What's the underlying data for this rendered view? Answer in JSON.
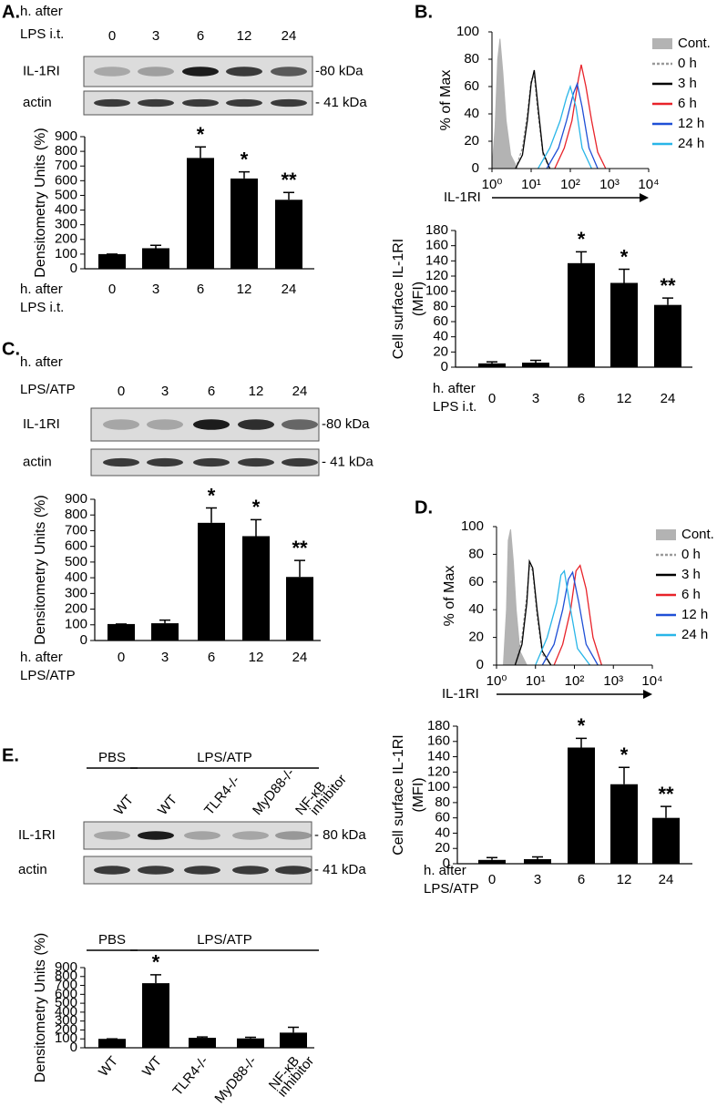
{
  "chart_data": [
    {
      "type": "bar",
      "panel": "A.",
      "xlabel": [
        "h. after",
        "LPS i.t."
      ],
      "ylabel": "Densitometry Units (%)",
      "categories": [
        "0",
        "3",
        "6",
        "12",
        "24"
      ],
      "values": [
        100,
        140,
        755,
        615,
        470
      ],
      "errors": [
        0,
        20,
        75,
        45,
        50
      ],
      "annotations": [
        null,
        null,
        "*",
        "*",
        "**"
      ],
      "color": "#000000",
      "ylim": [
        0,
        900
      ],
      "yticks": [
        0,
        100,
        200,
        300,
        400,
        500,
        600,
        700,
        800,
        900
      ],
      "blot": {
        "rows": [
          "IL-1RI",
          "actin"
        ],
        "markers": [
          "-80 kDa",
          "- 41 kDa"
        ]
      }
    },
    {
      "type": "line",
      "panel": "B.",
      "xlabel": "IL-1RI",
      "ylabel": "% of Max",
      "xscale": "log",
      "xlim": [
        1,
        10000
      ],
      "xticks": [
        {
          "value": 1,
          "label": "10⁰"
        },
        {
          "value": 10,
          "label": "10¹"
        },
        {
          "value": 100,
          "label": "10²"
        },
        {
          "value": 1000,
          "label": "10³"
        },
        {
          "value": 10000,
          "label": "10⁴"
        }
      ],
      "ylim": [
        0,
        100
      ],
      "yticks": [
        0,
        20,
        40,
        60,
        80,
        100
      ],
      "legend": "right",
      "series": [
        {
          "name": "Cont.",
          "color": "#b3b3b3",
          "style": "area",
          "x": [
            1,
            1.2,
            1.4,
            1.6,
            1.9,
            2.3,
            3,
            4.5
          ],
          "values": [
            0,
            30,
            80,
            95,
            70,
            35,
            10,
            0
          ]
        },
        {
          "name": "0 h",
          "color": "#999999",
          "style": "dashed",
          "x": [
            4,
            6,
            8,
            10,
            12,
            15,
            20,
            30
          ],
          "values": [
            0,
            15,
            40,
            65,
            68,
            40,
            10,
            0
          ]
        },
        {
          "name": "3 h",
          "color": "#000000",
          "style": "solid",
          "x": [
            4,
            6,
            8,
            10,
            12,
            15,
            20,
            30
          ],
          "values": [
            0,
            10,
            35,
            62,
            72,
            45,
            12,
            0
          ]
        },
        {
          "name": "6 h",
          "color": "#e8232a",
          "style": "solid",
          "x": [
            40,
            70,
            110,
            160,
            190,
            250,
            350,
            500,
            800
          ],
          "values": [
            0,
            15,
            35,
            65,
            76,
            60,
            35,
            12,
            0
          ]
        },
        {
          "name": "12 h",
          "color": "#1f4fd6",
          "style": "solid",
          "x": [
            25,
            50,
            80,
            120,
            150,
            200,
            300,
            500
          ],
          "values": [
            0,
            15,
            35,
            55,
            62,
            45,
            15,
            0
          ]
        },
        {
          "name": "24 h",
          "color": "#29b6e8",
          "style": "solid",
          "x": [
            15,
            30,
            55,
            80,
            100,
            140,
            200,
            350
          ],
          "values": [
            0,
            15,
            35,
            52,
            60,
            45,
            15,
            0
          ]
        }
      ]
    },
    {
      "type": "bar",
      "xlabel": [
        "h. after",
        "LPS i.t."
      ],
      "ylabel": [
        "Cell surface IL-1RI",
        "(MFI)"
      ],
      "categories": [
        "0",
        "3",
        "6",
        "12",
        "24"
      ],
      "values": [
        5,
        6,
        137,
        111,
        82
      ],
      "errors": [
        2,
        3,
        15,
        18,
        9
      ],
      "annotations": [
        null,
        null,
        "*",
        "*",
        "**"
      ],
      "color": "#000000",
      "ylim": [
        0,
        180
      ],
      "yticks": [
        0,
        20,
        40,
        60,
        80,
        100,
        120,
        140,
        160,
        180
      ]
    },
    {
      "type": "bar",
      "panel": "C.",
      "xlabel": [
        "h. after",
        "LPS/ATP"
      ],
      "ylabel": "Densitometry Units (%)",
      "categories": [
        "0",
        "3",
        "6",
        "12",
        "24"
      ],
      "values": [
        105,
        110,
        750,
        665,
        405
      ],
      "errors": [
        0,
        20,
        95,
        105,
        105
      ],
      "annotations": [
        null,
        null,
        "*",
        "*",
        "**"
      ],
      "color": "#000000",
      "ylim": [
        0,
        900
      ],
      "yticks": [
        0,
        100,
        200,
        300,
        400,
        500,
        600,
        700,
        800,
        900
      ],
      "blot": {
        "rows": [
          "IL-1RI",
          "actin"
        ],
        "markers": [
          "-80 kDa",
          "- 41 kDa"
        ]
      }
    },
    {
      "type": "line",
      "panel": "D.",
      "xlabel": "IL-1RI",
      "ylabel": "% of Max",
      "xscale": "log",
      "xlim": [
        1,
        10000
      ],
      "xticks": [
        {
          "value": 1,
          "label": "10⁰"
        },
        {
          "value": 10,
          "label": "10¹"
        },
        {
          "value": 100,
          "label": "10²"
        },
        {
          "value": 1000,
          "label": "10³"
        },
        {
          "value": 10000,
          "label": "10⁴"
        }
      ],
      "ylim": [
        0,
        100
      ],
      "yticks": [
        0,
        20,
        40,
        60,
        80,
        100
      ],
      "legend": "right",
      "series": [
        {
          "name": "Cont.",
          "color": "#b3b3b3",
          "style": "area",
          "x": [
            1.5,
            1.8,
            2,
            2.3,
            2.7,
            3.2,
            4,
            6
          ],
          "values": [
            0,
            40,
            90,
            98,
            75,
            40,
            10,
            0
          ]
        },
        {
          "name": "0 h",
          "color": "#999999",
          "style": "dashed",
          "x": [
            3,
            4.5,
            6,
            7,
            8.5,
            11,
            15,
            25
          ],
          "values": [
            0,
            20,
            50,
            72,
            68,
            35,
            8,
            0
          ]
        },
        {
          "name": "3 h",
          "color": "#000000",
          "style": "solid",
          "x": [
            3,
            4.5,
            6,
            7,
            8.5,
            11,
            15,
            25
          ],
          "values": [
            0,
            15,
            45,
            75,
            70,
            40,
            10,
            0
          ]
        },
        {
          "name": "6 h",
          "color": "#e8232a",
          "style": "solid",
          "x": [
            30,
            50,
            80,
            110,
            140,
            200,
            300,
            500
          ],
          "values": [
            0,
            15,
            40,
            68,
            72,
            55,
            20,
            0
          ]
        },
        {
          "name": "12 h",
          "color": "#1f4fd6",
          "style": "solid",
          "x": [
            15,
            30,
            50,
            70,
            90,
            130,
            200,
            400
          ],
          "values": [
            0,
            15,
            40,
            62,
            67,
            45,
            15,
            0
          ]
        },
        {
          "name": "24 h",
          "color": "#29b6e8",
          "style": "solid",
          "x": [
            10,
            20,
            35,
            45,
            55,
            80,
            120,
            250
          ],
          "values": [
            0,
            20,
            45,
            65,
            68,
            40,
            12,
            0
          ]
        }
      ]
    },
    {
      "type": "bar",
      "xlabel": [
        "h. after",
        "LPS/ATP"
      ],
      "ylabel": [
        "Cell surface IL-1RI",
        "(MFI)"
      ],
      "categories": [
        "0",
        "3",
        "6",
        "12",
        "24"
      ],
      "values": [
        5,
        6,
        152,
        104,
        60
      ],
      "errors": [
        3,
        3,
        12,
        22,
        15
      ],
      "annotations": [
        null,
        null,
        "*",
        "*",
        "**"
      ],
      "color": "#000000",
      "ylim": [
        0,
        180
      ],
      "yticks": [
        0,
        20,
        40,
        60,
        80,
        100,
        120,
        140,
        160,
        180
      ]
    },
    {
      "type": "bar",
      "panel": "E.",
      "ylabel": "Densitometry Units (%)",
      "categories": [
        "WT",
        "WT",
        "TLR4-/-",
        "MyD88-/-",
        [
          "NF-κB",
          "inhibitor"
        ]
      ],
      "values": [
        100,
        725,
        112,
        105,
        170
      ],
      "errors": [
        0,
        95,
        10,
        12,
        60
      ],
      "annotations": [
        null,
        "*",
        null,
        null,
        null
      ],
      "color": "#000000",
      "groups": [
        {
          "label": "PBS",
          "size": 1
        },
        {
          "label": "LPS/ATP",
          "size": 4
        }
      ],
      "ylim": [
        0,
        900
      ],
      "yticks": [
        0,
        100,
        200,
        300,
        400,
        500,
        600,
        700,
        800,
        900
      ],
      "blot": {
        "rows": [
          "IL-1RI",
          "actin"
        ],
        "markers": [
          "- 80 kDa",
          "- 41 kDa"
        ]
      }
    }
  ]
}
